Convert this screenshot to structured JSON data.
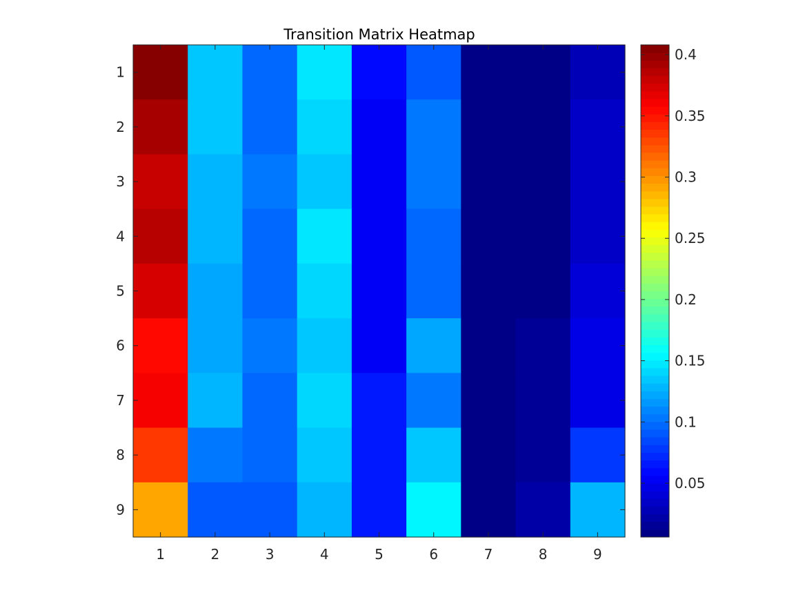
{
  "chart_data": {
    "type": "heatmap",
    "title": "Transition Matrix Heatmap",
    "xlabel": "",
    "ylabel": "",
    "x_categories": [
      "1",
      "2",
      "3",
      "4",
      "5",
      "6",
      "7",
      "8",
      "9"
    ],
    "y_categories": [
      "1",
      "2",
      "3",
      "4",
      "5",
      "6",
      "7",
      "8",
      "9"
    ],
    "colormap": "jet",
    "clim": [
      0.006,
      0.408
    ],
    "colorbar_ticks": [
      {
        "value": 0.05,
        "label": "0.05"
      },
      {
        "value": 0.1,
        "label": "0.1"
      },
      {
        "value": 0.15,
        "label": "0.15"
      },
      {
        "value": 0.2,
        "label": "0.2"
      },
      {
        "value": 0.25,
        "label": "0.25"
      },
      {
        "value": 0.3,
        "label": "0.3"
      },
      {
        "value": 0.35,
        "label": "0.35"
      },
      {
        "value": 0.4,
        "label": "0.4"
      }
    ],
    "values": [
      [
        0.405,
        0.133,
        0.096,
        0.145,
        0.057,
        0.093,
        0.01,
        0.01,
        0.025
      ],
      [
        0.393,
        0.132,
        0.096,
        0.14,
        0.055,
        0.103,
        0.01,
        0.01,
        0.032
      ],
      [
        0.382,
        0.13,
        0.103,
        0.136,
        0.054,
        0.105,
        0.01,
        0.01,
        0.035
      ],
      [
        0.388,
        0.13,
        0.094,
        0.146,
        0.055,
        0.094,
        0.01,
        0.01,
        0.034
      ],
      [
        0.372,
        0.124,
        0.097,
        0.143,
        0.054,
        0.099,
        0.01,
        0.01,
        0.04
      ],
      [
        0.353,
        0.125,
        0.103,
        0.132,
        0.055,
        0.124,
        0.01,
        0.014,
        0.044
      ],
      [
        0.36,
        0.128,
        0.094,
        0.143,
        0.063,
        0.105,
        0.01,
        0.014,
        0.045
      ],
      [
        0.335,
        0.101,
        0.094,
        0.134,
        0.063,
        0.136,
        0.01,
        0.014,
        0.078
      ],
      [
        0.292,
        0.088,
        0.093,
        0.126,
        0.066,
        0.156,
        0.01,
        0.022,
        0.127
      ]
    ],
    "grid": false
  }
}
